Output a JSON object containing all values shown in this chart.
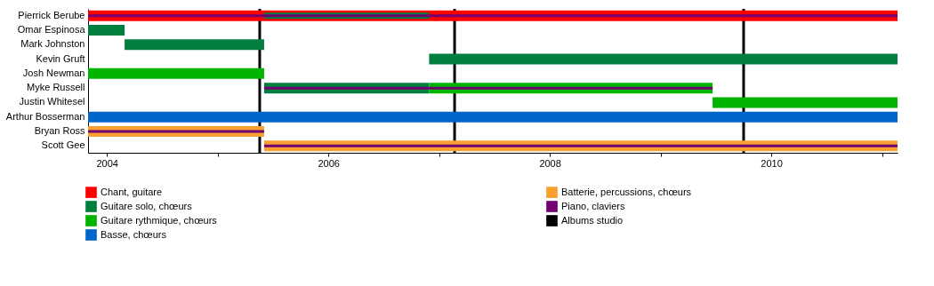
{
  "chart_data": {
    "type": "bar",
    "orientation": "horizontal",
    "categories": [
      "Pierrick Berube",
      "Omar Espinosa",
      "Mark Johnston",
      "Kevin Gruft",
      "Josh Newman",
      "Myke Russell",
      "Justin Whitesel",
      "Arthur Bosserman",
      "Bryan Ross",
      "Scott Gee"
    ],
    "series": [
      {
        "name": "Chant, guitare",
        "color": "#ff0000",
        "base": [
          2003.83,
          null,
          null,
          null,
          null,
          null,
          null,
          null,
          null,
          null
        ],
        "values": [
          7.31,
          null,
          null,
          null,
          null,
          null,
          null,
          null,
          null,
          null
        ]
      },
      {
        "name": "Guitare solo, chœurs",
        "color": "#007f3f",
        "base": [
          2005.42,
          2003.83,
          2004.16,
          2006.91,
          null,
          2005.42,
          null,
          null,
          null,
          null
        ],
        "values": [
          1.49,
          0.33,
          1.26,
          4.23,
          null,
          1.49,
          null,
          null,
          null,
          null
        ]
      },
      {
        "name": "Guitare rythmique, chœurs",
        "color": "#00b400",
        "base": [
          null,
          null,
          null,
          null,
          2003.83,
          2006.91,
          2009.47,
          null,
          null,
          null
        ],
        "values": [
          null,
          null,
          null,
          null,
          1.59,
          2.56,
          1.67,
          null,
          null,
          null
        ]
      },
      {
        "name": "Basse, chœurs",
        "color": "#0066cc",
        "base": [
          null,
          null,
          null,
          null,
          null,
          null,
          null,
          2003.83,
          null,
          null
        ],
        "values": [
          null,
          null,
          null,
          null,
          null,
          null,
          null,
          7.31,
          null,
          null
        ]
      },
      {
        "name": "Batterie, percussions, chœurs",
        "color": "#f8a030",
        "base": [
          null,
          null,
          null,
          null,
          null,
          null,
          null,
          null,
          2003.83,
          2005.42
        ],
        "values": [
          null,
          null,
          null,
          null,
          null,
          null,
          null,
          null,
          1.59,
          5.72
        ]
      },
      {
        "name": "Piano, claviers",
        "color": "#730073",
        "base": [
          2003.83,
          null,
          null,
          null,
          null,
          2005.42,
          null,
          null,
          2003.83,
          2005.42
        ],
        "values": [
          7.31,
          null,
          null,
          null,
          null,
          4.05,
          null,
          null,
          1.59,
          5.72
        ]
      }
    ],
    "ref_lines": [
      {
        "axis": "x",
        "value": 2005.38,
        "label": "Albums studio",
        "color": "#000000"
      },
      {
        "axis": "x",
        "value": 2007.14,
        "color": "#000000"
      },
      {
        "axis": "x",
        "value": 2009.75,
        "color": "#000000"
      }
    ],
    "xlim": [
      2003.83,
      2011.14
    ],
    "xticks": [
      2004,
      {
        "value": 2005,
        "label": null
      },
      2006,
      {
        "value": 2007,
        "label": null
      },
      2008,
      {
        "value": 2009,
        "label": null
      },
      2010,
      {
        "value": 2011,
        "label": null
      }
    ],
    "legend": "bottom"
  }
}
